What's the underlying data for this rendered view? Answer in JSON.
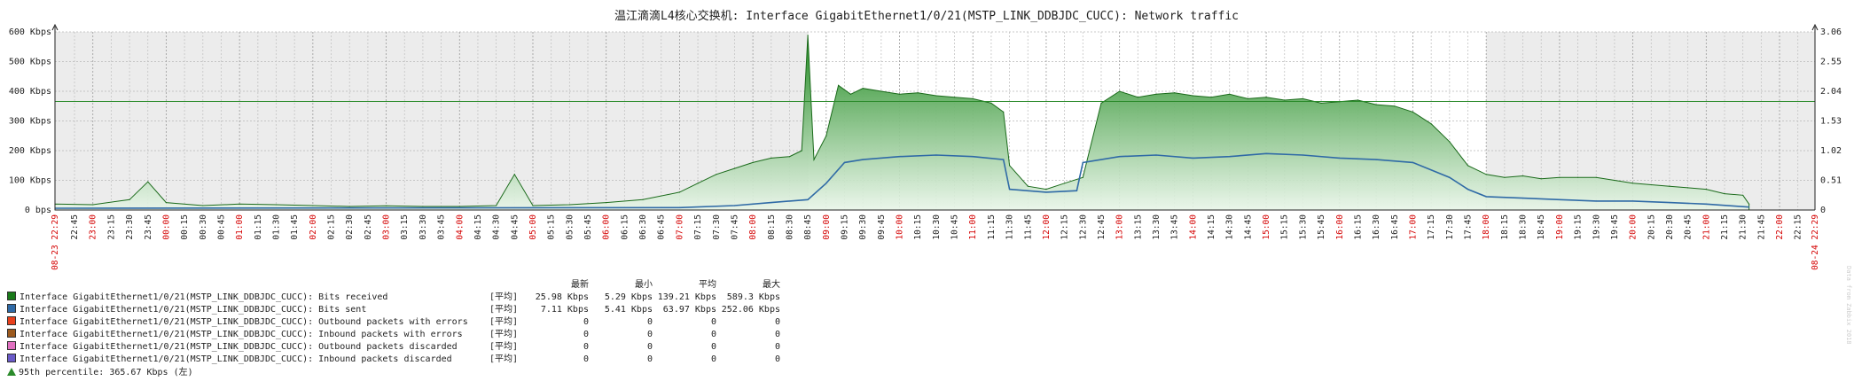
{
  "title": "温江滴滴L4核心交换机: Interface GigabitEthernet1/0/21(MSTP_LINK_DDBJDC_CUCC): Network traffic",
  "chart_data": {
    "type": "area",
    "title": "温江滴滴L4核心交换机: Interface GigabitEthernet1/0/21(MSTP_LINK_DDBJDC_CUCC): Network traffic",
    "ylim_kbps": [
      0,
      600
    ],
    "y_ticks_left": [
      "0 bps",
      "100 Kbps",
      "200 Kbps",
      "300 Kbps",
      "400 Kbps",
      "500 Kbps",
      "600 Kbps"
    ],
    "y_ticks_right": [
      "0",
      "0.51",
      "1.02",
      "1.53",
      "2.04",
      "2.55",
      "3.06"
    ],
    "x_start_label": "08-23 22:29",
    "x_end_label": "08-24 22:29",
    "x_ticks": [
      "22:45",
      "23:00",
      "23:15",
      "23:30",
      "23:45",
      "00:00",
      "00:15",
      "00:30",
      "00:45",
      "01:00",
      "01:15",
      "01:30",
      "01:45",
      "02:00",
      "02:15",
      "02:30",
      "02:45",
      "03:00",
      "03:15",
      "03:30",
      "03:45",
      "04:00",
      "04:15",
      "04:30",
      "04:45",
      "05:00",
      "05:15",
      "05:30",
      "05:45",
      "06:00",
      "06:15",
      "06:30",
      "06:45",
      "07:00",
      "07:15",
      "07:30",
      "07:45",
      "08:00",
      "08:15",
      "08:30",
      "08:45",
      "09:00",
      "09:15",
      "09:30",
      "09:45",
      "10:00",
      "10:15",
      "10:30",
      "10:45",
      "11:00",
      "11:15",
      "11:30",
      "11:45",
      "12:00",
      "12:15",
      "12:30",
      "12:45",
      "13:00",
      "13:15",
      "13:30",
      "13:45",
      "14:00",
      "14:15",
      "14:30",
      "14:45",
      "15:00",
      "15:15",
      "15:30",
      "15:45",
      "16:00",
      "16:15",
      "16:30",
      "16:45",
      "17:00",
      "17:15",
      "17:30",
      "17:45",
      "18:00",
      "18:15",
      "18:30",
      "18:45",
      "19:00",
      "19:15",
      "19:30",
      "19:45",
      "20:00",
      "20:15",
      "20:30",
      "20:45",
      "21:00",
      "21:15",
      "21:30",
      "21:45",
      "22:00",
      "22:15"
    ],
    "percentile_line_kbps": 365.67,
    "series": [
      {
        "name": "Bits received",
        "color": "#1a7a1a",
        "unit": "Kbps",
        "x": [
          "22:29",
          "23:00",
          "23:30",
          "23:45",
          "00:00",
          "00:30",
          "01:00",
          "01:30",
          "02:00",
          "02:30",
          "03:00",
          "03:30",
          "04:00",
          "04:30",
          "04:45",
          "05:00",
          "05:30",
          "06:00",
          "06:30",
          "07:00",
          "07:15",
          "07:30",
          "07:45",
          "08:00",
          "08:15",
          "08:30",
          "08:40",
          "08:45",
          "08:50",
          "09:00",
          "09:10",
          "09:20",
          "09:30",
          "09:45",
          "10:00",
          "10:15",
          "10:30",
          "10:45",
          "11:00",
          "11:15",
          "11:25",
          "11:30",
          "11:45",
          "12:00",
          "12:15",
          "12:30",
          "12:45",
          "13:00",
          "13:15",
          "13:30",
          "13:45",
          "14:00",
          "14:15",
          "14:30",
          "14:45",
          "15:00",
          "15:15",
          "15:30",
          "15:45",
          "16:00",
          "16:15",
          "16:30",
          "16:45",
          "17:00",
          "17:15",
          "17:30",
          "17:45",
          "18:00",
          "18:15",
          "18:30",
          "18:45",
          "19:00",
          "19:15",
          "19:30",
          "19:45",
          "20:00",
          "20:15",
          "20:30",
          "20:45",
          "21:00",
          "21:15",
          "21:30",
          "21:35"
        ],
        "values": [
          20,
          18,
          35,
          95,
          25,
          15,
          20,
          18,
          15,
          12,
          14,
          12,
          12,
          15,
          120,
          15,
          18,
          25,
          35,
          60,
          90,
          120,
          140,
          160,
          175,
          180,
          200,
          589,
          170,
          250,
          420,
          390,
          410,
          400,
          390,
          395,
          385,
          380,
          375,
          360,
          330,
          150,
          80,
          70,
          90,
          110,
          360,
          400,
          380,
          390,
          395,
          385,
          380,
          390,
          375,
          380,
          370,
          375,
          360,
          365,
          370,
          355,
          350,
          330,
          290,
          230,
          150,
          120,
          110,
          115,
          105,
          110,
          110,
          110,
          100,
          90,
          85,
          80,
          75,
          70,
          55,
          50,
          20
        ]
      },
      {
        "name": "Bits sent",
        "color": "#2f6aa6",
        "unit": "Kbps",
        "x": [
          "22:29",
          "07:00",
          "07:45",
          "08:15",
          "08:45",
          "09:00",
          "09:15",
          "09:30",
          "10:00",
          "10:30",
          "11:00",
          "11:25",
          "11:30",
          "12:00",
          "12:25",
          "12:30",
          "13:00",
          "13:30",
          "14:00",
          "14:30",
          "15:00",
          "15:30",
          "16:00",
          "16:30",
          "17:00",
          "17:30",
          "17:45",
          "18:00",
          "18:30",
          "19:00",
          "19:30",
          "20:00",
          "20:30",
          "21:00",
          "21:35"
        ],
        "values": [
          6,
          8,
          15,
          25,
          35,
          90,
          160,
          170,
          180,
          185,
          180,
          170,
          70,
          60,
          65,
          160,
          180,
          185,
          175,
          180,
          190,
          185,
          175,
          170,
          160,
          110,
          70,
          45,
          40,
          35,
          30,
          30,
          25,
          20,
          10
        ]
      }
    ]
  },
  "legend": {
    "headers": [
      "最新",
      "最小",
      "平均",
      "最大"
    ],
    "rows": [
      {
        "name": "Interface GigabitEthernet1/0/21(MSTP_LINK_DDBJDC_CUCC): Bits received",
        "func": "[平均]",
        "last": "25.98 Kbps",
        "min": "5.29 Kbps",
        "avg": "139.21 Kbps",
        "max": "589.3 Kbps",
        "color": "#1a7a1a"
      },
      {
        "name": "Interface GigabitEthernet1/0/21(MSTP_LINK_DDBJDC_CUCC): Bits sent",
        "func": "[平均]",
        "last": "7.11 Kbps",
        "min": "5.41 Kbps",
        "avg": "63.97 Kbps",
        "max": "252.06 Kbps",
        "color": "#2f6aa6"
      },
      {
        "name": "Interface GigabitEthernet1/0/21(MSTP_LINK_DDBJDC_CUCC): Outbound packets with errors",
        "func": "[平均]",
        "last": "0",
        "min": "0",
        "avg": "0",
        "max": "0",
        "color": "#e8401c"
      },
      {
        "name": "Interface GigabitEthernet1/0/21(MSTP_LINK_DDBJDC_CUCC): Inbound packets with errors",
        "func": "[平均]",
        "last": "0",
        "min": "0",
        "avg": "0",
        "max": "0",
        "color": "#9c5a1e"
      },
      {
        "name": "Interface GigabitEthernet1/0/21(MSTP_LINK_DDBJDC_CUCC): Outbound packets discarded",
        "func": "[平均]",
        "last": "0",
        "min": "0",
        "avg": "0",
        "max": "0",
        "color": "#e070c0"
      },
      {
        "name": "Interface GigabitEthernet1/0/21(MSTP_LINK_DDBJDC_CUCC): Inbound packets discarded",
        "func": "[平均]",
        "last": "0",
        "min": "0",
        "avg": "0",
        "max": "0",
        "color": "#6a5ac8"
      }
    ]
  },
  "percentile_label": "95th percentile: 365.67 Kbps (左)",
  "watermark": "Data from Zabbix 2018"
}
